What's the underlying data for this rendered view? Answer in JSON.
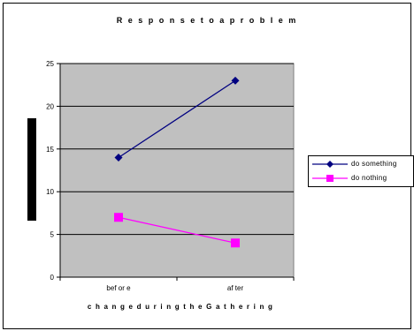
{
  "chart_data": {
    "type": "line",
    "title": "R e s p o n s e  t o  a  p r o b l e m",
    "xlabel": "c h a n g e  d u r i n g  t h e  G a t h e r i n g",
    "ylabel": "",
    "categories": [
      "bef or e",
      "af ter"
    ],
    "ylim": [
      0,
      25
    ],
    "yticks": [
      0,
      5,
      10,
      15,
      20,
      25
    ],
    "grid": true,
    "legend_position": "right",
    "plot_background": "#c0c0c0",
    "series": [
      {
        "name": "do something",
        "values": [
          14,
          23
        ],
        "color": "#000080",
        "marker": "diamond"
      },
      {
        "name": "do nothing",
        "values": [
          7,
          4
        ],
        "color": "#ff00ff",
        "marker": "square"
      }
    ]
  }
}
